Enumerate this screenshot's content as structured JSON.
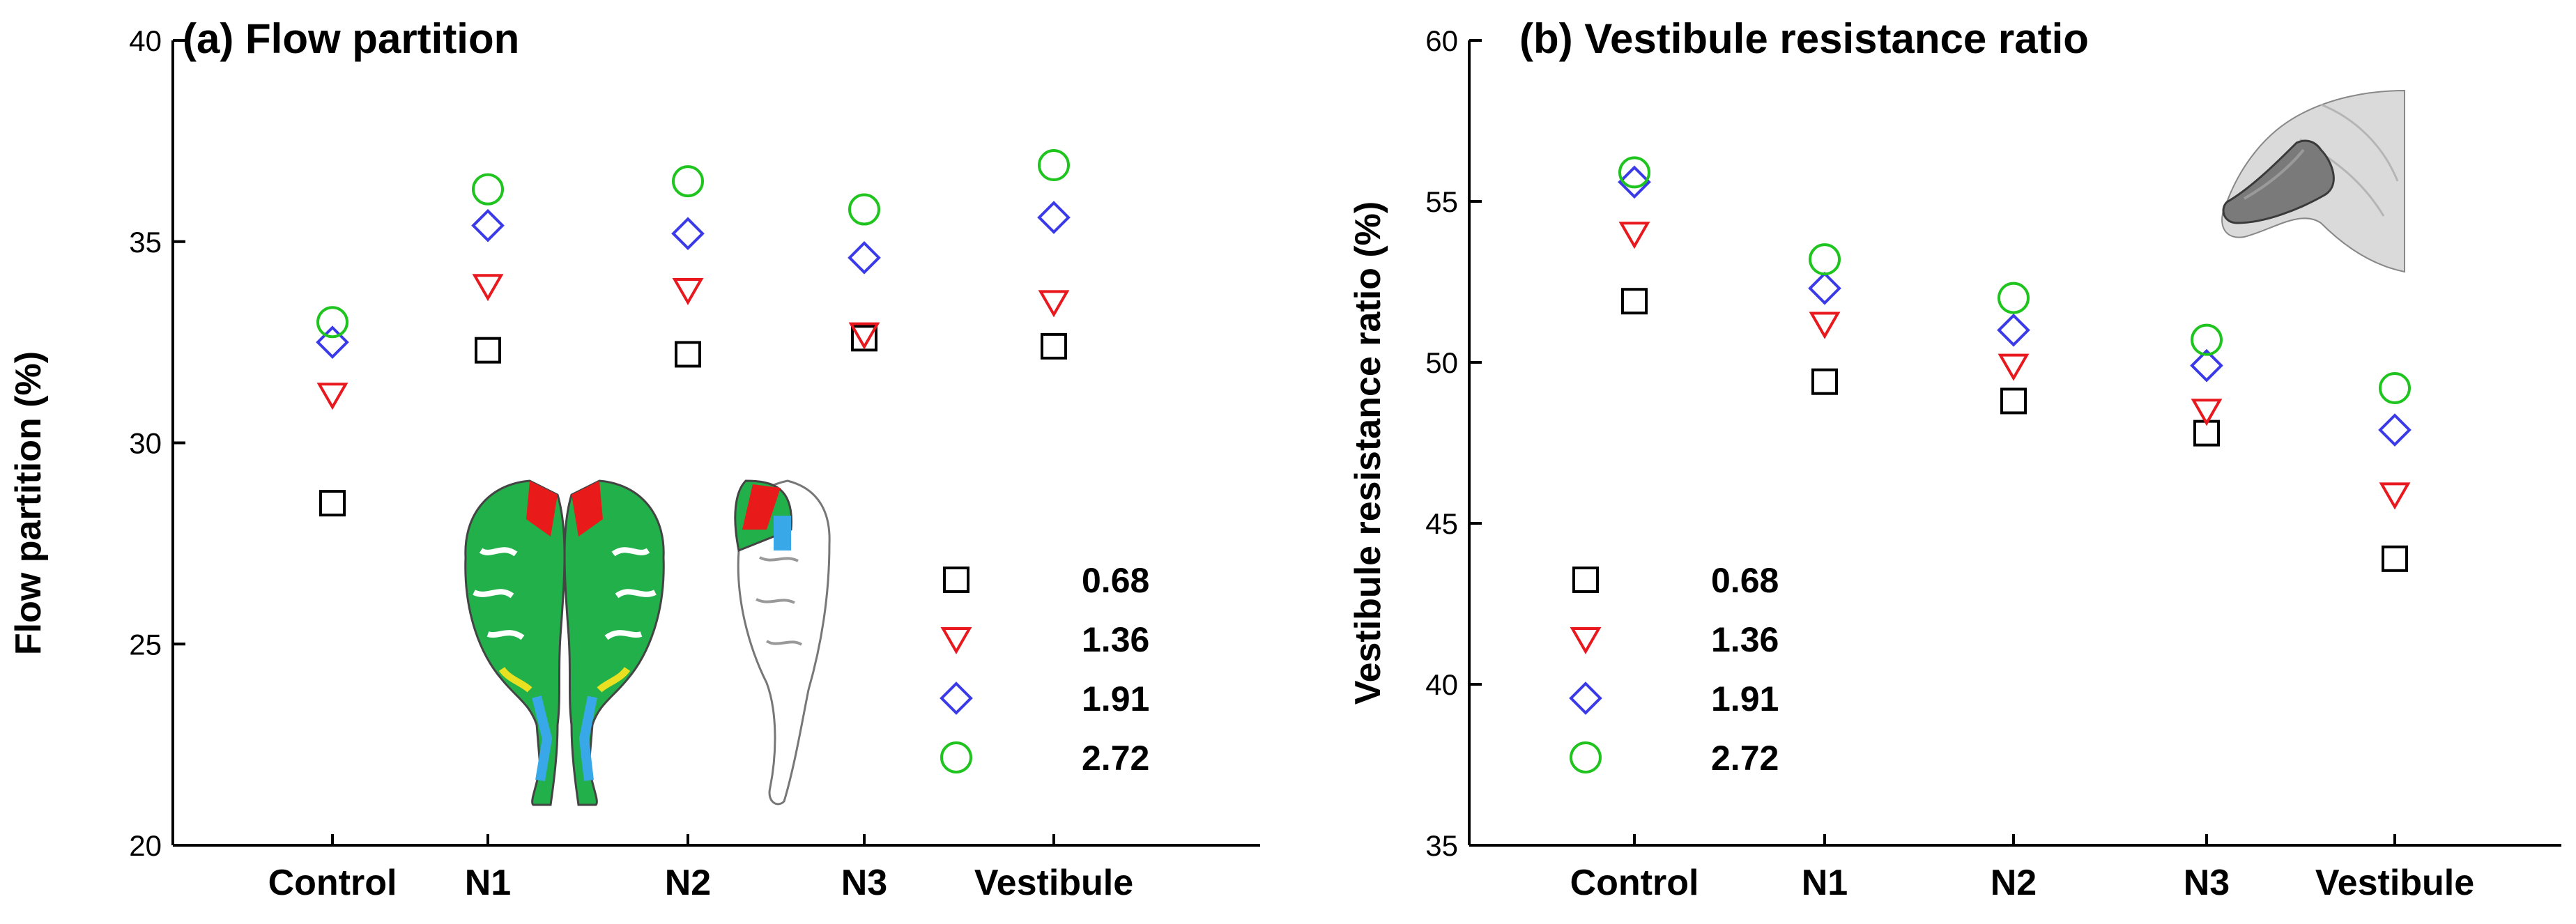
{
  "chart_data": [
    {
      "type": "scatter",
      "panel": "a",
      "title": "(a) Flow partition",
      "xlabel": "",
      "ylabel": "Flow partition (%)",
      "categories": [
        "Control",
        "N1",
        "N2",
        "N3",
        "Vestibule"
      ],
      "ylim": [
        20,
        40
      ],
      "yticks": [
        20,
        25,
        30,
        35,
        40
      ],
      "series": [
        {
          "name": "0.68",
          "marker": "square",
          "color": "#000000",
          "values": [
            28.5,
            32.3,
            32.2,
            32.6,
            32.4
          ]
        },
        {
          "name": "1.36",
          "marker": "triangle-down",
          "color": "#e8181e",
          "values": [
            31.2,
            33.9,
            33.8,
            32.7,
            33.5
          ]
        },
        {
          "name": "1.91",
          "marker": "diamond",
          "color": "#3a3ae8",
          "values": [
            32.5,
            35.4,
            35.2,
            34.6,
            35.6
          ]
        },
        {
          "name": "2.72",
          "marker": "circle",
          "color": "#1fc41f",
          "values": [
            33.0,
            36.3,
            36.5,
            35.8,
            36.9
          ]
        }
      ],
      "legend_position": "bottom-right",
      "inset": "airway-flow-contour-image"
    },
    {
      "type": "scatter",
      "panel": "b",
      "title": "(b) Vestibule resistance ratio",
      "xlabel": "",
      "ylabel": "Vestibule resistance ratio (%)",
      "categories": [
        "Control",
        "N1",
        "N2",
        "N3",
        "Vestibule"
      ],
      "ylim": [
        35,
        60
      ],
      "yticks": [
        35,
        40,
        45,
        50,
        55,
        60
      ],
      "series": [
        {
          "name": "0.68",
          "marker": "square",
          "color": "#000000",
          "values": [
            51.9,
            49.4,
            48.8,
            47.8,
            43.9
          ]
        },
        {
          "name": "1.36",
          "marker": "triangle-down",
          "color": "#e8181e",
          "values": [
            54.0,
            51.2,
            49.9,
            48.5,
            45.9
          ]
        },
        {
          "name": "1.91",
          "marker": "diamond",
          "color": "#3a3ae8",
          "values": [
            55.6,
            52.3,
            51.0,
            49.9,
            47.9
          ]
        },
        {
          "name": "2.72",
          "marker": "circle",
          "color": "#1fc41f",
          "values": [
            55.9,
            53.2,
            52.0,
            50.7,
            49.2
          ]
        }
      ],
      "legend_position": "bottom-left",
      "inset": "vestibule-3d-shape-image"
    }
  ]
}
